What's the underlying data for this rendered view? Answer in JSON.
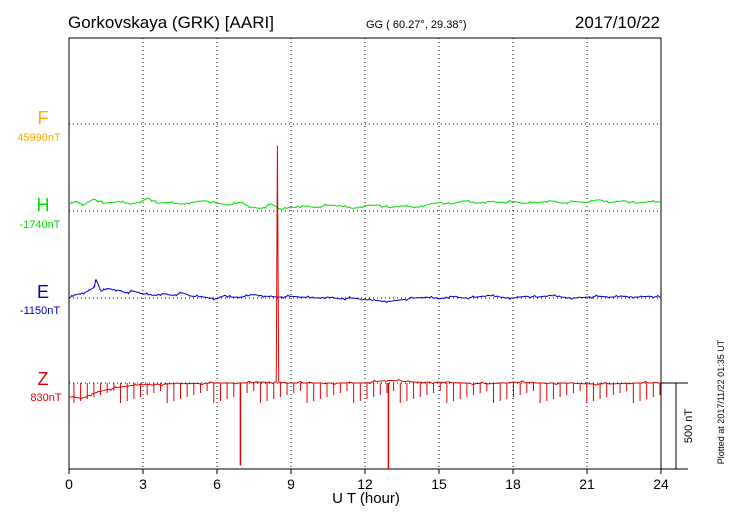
{
  "header": {
    "station": "Gorkovskaya (GRK)  [AARI]",
    "coords": "GG ( 60.27°,  29.38°)",
    "date": "2017/10/22"
  },
  "side_note": "Plotted at 2017/11/22 01:35 UT",
  "colors": {
    "F": "#ffaa00",
    "H": "#00dd00",
    "E": "#0000cc",
    "Z": "#dd0000",
    "axis": "#000000",
    "grid": "#000000"
  },
  "chart_data": {
    "type": "line",
    "xlabel": "U T (hour)",
    "xlim": [
      0,
      24
    ],
    "xticks": [
      0,
      3,
      6,
      9,
      12,
      15,
      18,
      21,
      24
    ],
    "grid": true,
    "scale_bar": {
      "label": "500 nT",
      "value_nT": 500
    },
    "series": [
      {
        "name": "F",
        "baseline_label": "45990nT",
        "points": []
      },
      {
        "name": "H",
        "baseline_label": "-1740nT",
        "points": [
          [
            0,
            40
          ],
          [
            0.3,
            55
          ],
          [
            0.6,
            35
          ],
          [
            1,
            70
          ],
          [
            1.4,
            45
          ],
          [
            2,
            55
          ],
          [
            2.5,
            40
          ],
          [
            3,
            60
          ],
          [
            3.2,
            75
          ],
          [
            3.6,
            45
          ],
          [
            4,
            50
          ],
          [
            4.5,
            40
          ],
          [
            5,
            50
          ],
          [
            5.5,
            60
          ],
          [
            6,
            45
          ],
          [
            6.5,
            35
          ],
          [
            7,
            50
          ],
          [
            7.4,
            20
          ],
          [
            7.8,
            15
          ],
          [
            8.2,
            40
          ],
          [
            8.6,
            10
          ],
          [
            9,
            20
          ],
          [
            9.5,
            30
          ],
          [
            10,
            20
          ],
          [
            10.5,
            35
          ],
          [
            11,
            30
          ],
          [
            11.5,
            15
          ],
          [
            12,
            30
          ],
          [
            12.5,
            35
          ],
          [
            13,
            20
          ],
          [
            13.5,
            30
          ],
          [
            14,
            20
          ],
          [
            14.5,
            35
          ],
          [
            15,
            50
          ],
          [
            15.5,
            40
          ],
          [
            16,
            60
          ],
          [
            16.5,
            45
          ],
          [
            17,
            55
          ],
          [
            17.5,
            50
          ],
          [
            18,
            55
          ],
          [
            18.5,
            45
          ],
          [
            19,
            50
          ],
          [
            19.5,
            60
          ],
          [
            20,
            45
          ],
          [
            20.5,
            55
          ],
          [
            21,
            50
          ],
          [
            21.5,
            65
          ],
          [
            22,
            50
          ],
          [
            22.5,
            60
          ],
          [
            23,
            45
          ],
          [
            23.5,
            55
          ],
          [
            24,
            50
          ]
        ]
      },
      {
        "name": "E",
        "baseline_label": "-1150nT",
        "points": [
          [
            0,
            0
          ],
          [
            0.3,
            20
          ],
          [
            0.7,
            35
          ],
          [
            1,
            60
          ],
          [
            1.1,
            105
          ],
          [
            1.3,
            40
          ],
          [
            1.6,
            55
          ],
          [
            2,
            45
          ],
          [
            2.3,
            30
          ],
          [
            2.6,
            40
          ],
          [
            3,
            25
          ],
          [
            3.4,
            15
          ],
          [
            3.8,
            25
          ],
          [
            4.2,
            15
          ],
          [
            4.6,
            30
          ],
          [
            5,
            10
          ],
          [
            5.5,
            5
          ],
          [
            6,
            -5
          ],
          [
            6.3,
            15
          ],
          [
            6.6,
            5
          ],
          [
            7,
            5
          ],
          [
            7.5,
            20
          ],
          [
            8,
            10
          ],
          [
            8.5,
            5
          ],
          [
            9,
            10
          ],
          [
            9.5,
            5
          ],
          [
            10,
            0
          ],
          [
            10.5,
            5
          ],
          [
            11,
            -5
          ],
          [
            11.5,
            0
          ],
          [
            12,
            -10
          ],
          [
            12.5,
            -15
          ],
          [
            13,
            -20
          ],
          [
            13.5,
            -10
          ],
          [
            14,
            0
          ],
          [
            14.5,
            5
          ],
          [
            15,
            -5
          ],
          [
            15.5,
            10
          ],
          [
            16,
            0
          ],
          [
            16.5,
            5
          ],
          [
            17,
            15
          ],
          [
            17.5,
            5
          ],
          [
            18,
            0
          ],
          [
            18.5,
            10
          ],
          [
            19,
            5
          ],
          [
            19.5,
            15
          ],
          [
            20,
            5
          ],
          [
            20.5,
            0
          ],
          [
            21,
            5
          ],
          [
            21.5,
            10
          ],
          [
            22,
            5
          ],
          [
            22.5,
            10
          ],
          [
            23,
            5
          ],
          [
            23.5,
            10
          ],
          [
            24,
            5
          ]
        ]
      },
      {
        "name": "Z",
        "baseline_label": "830nT",
        "points": [
          [
            0,
            -80
          ],
          [
            0.5,
            -90
          ],
          [
            1,
            -60
          ],
          [
            1.5,
            -40
          ],
          [
            2,
            -25
          ],
          [
            2.5,
            -15
          ],
          [
            3,
            -10
          ],
          [
            4,
            -5
          ],
          [
            5,
            -3
          ],
          [
            6,
            0
          ],
          [
            7,
            0
          ],
          [
            7.8,
            5
          ],
          [
            8.4,
            5
          ],
          [
            8.45,
            1380
          ],
          [
            8.5,
            5
          ],
          [
            9,
            0
          ],
          [
            10,
            0
          ],
          [
            11,
            0
          ],
          [
            12,
            0
          ],
          [
            12.5,
            10
          ],
          [
            13,
            15
          ],
          [
            14,
            5
          ],
          [
            15,
            5
          ],
          [
            16,
            0
          ],
          [
            17,
            -5
          ],
          [
            18,
            5
          ],
          [
            19,
            0
          ],
          [
            20,
            0
          ],
          [
            21,
            -5
          ],
          [
            22,
            -5
          ],
          [
            23,
            0
          ],
          [
            24,
            0
          ]
        ],
        "spikes": [
          [
            6.95,
            -480
          ],
          [
            12.95,
            -500
          ]
        ]
      }
    ]
  }
}
